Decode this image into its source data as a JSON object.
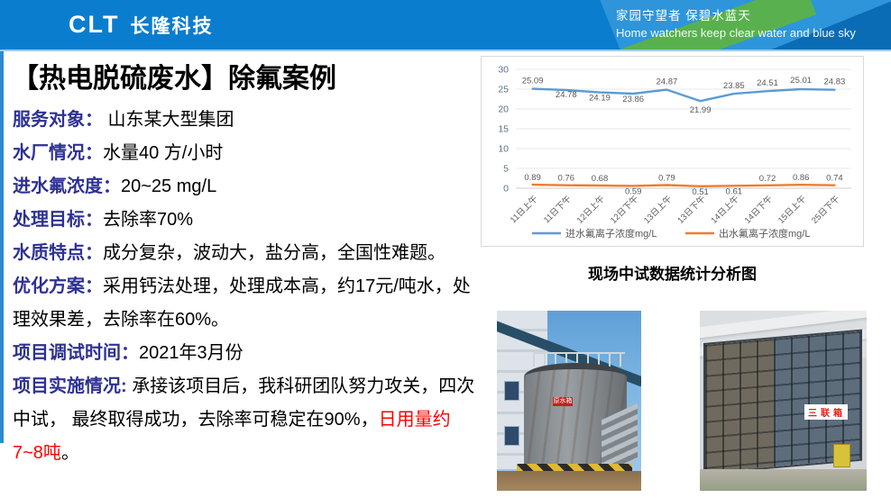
{
  "header": {
    "logo_clt": "CLT",
    "logo_name": "长隆科技",
    "tagline_zh": "家园守望者  保碧水蓝天",
    "tagline_en": "Home watchers keep clear water and blue sky"
  },
  "title": "【热电脱硫废水】除氟案例",
  "info": {
    "items": [
      {
        "label": "服务对象：",
        "text": " 山东某大型集团"
      },
      {
        "label": "水厂情况：",
        "text": "水量40 方/小时"
      },
      {
        "label": "进水氟浓度：",
        "text": "20~25 mg/L"
      },
      {
        "label": "处理目标：",
        "text": "去除率70%"
      },
      {
        "label": "水质特点：",
        "text": "成分复杂，波动大，盐分高，全国性难题。"
      },
      {
        "label": "优化方案：",
        "text": "采用钙法处理，处理成本高，约17元/吨水，处理效果差，去除率在60%。"
      },
      {
        "label": "项目调试时间：",
        "text": "2021年3月份"
      },
      {
        "label": "项目实施情况:",
        "text": " 承接该项目后，我科研团队努力攻关，四次中试， 最终取得成功，去除率可稳定在90%，",
        "red_text": "日用量约7~8吨",
        "suffix": "。"
      }
    ]
  },
  "chart_data": {
    "type": "line",
    "title": "",
    "categories": [
      "11日上午",
      "11日下午",
      "12日上午",
      "12日下午",
      "13日上午",
      "13日下午",
      "14日上午",
      "14日下午",
      "15日上午",
      "25日下午"
    ],
    "series": [
      {
        "name": "进水氟离子浓度mg/L",
        "color": "#5B9BD5",
        "values": [
          25.09,
          24.78,
          24.19,
          23.86,
          24.87,
          21.99,
          23.85,
          24.51,
          25.01,
          24.83
        ]
      },
      {
        "name": "出水氟离子浓度mg/L",
        "color": "#ED7D31",
        "values": [
          0.89,
          0.76,
          0.68,
          0.59,
          0.79,
          0.51,
          0.61,
          0.72,
          0.86,
          0.74
        ]
      }
    ],
    "xlabel": "",
    "ylabel": "",
    "ylim": [
      0,
      30
    ],
    "yticks": [
      0,
      5,
      10,
      15,
      20,
      25,
      30
    ],
    "grid": true,
    "legend_position": "bottom"
  },
  "chart_caption": "现场中试数据统计分析图",
  "photos": [
    {
      "sign": "原水箱"
    },
    {
      "sign": "三联箱"
    }
  ],
  "colors": {
    "header_blue": "#0b7dce",
    "header_green_band": "#58b14e",
    "label_indigo": "#2e3193",
    "highlight_red": "#ff0000",
    "series_inflow_blue": "#5B9BD5",
    "series_outflow_orange": "#ED7D31"
  }
}
